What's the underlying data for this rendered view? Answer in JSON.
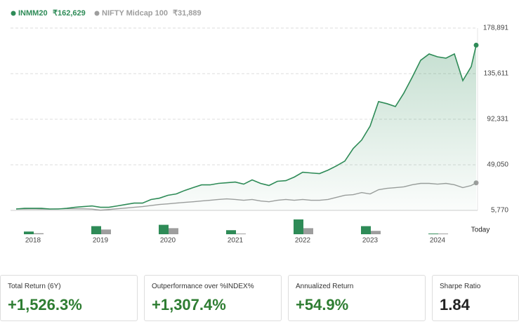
{
  "chart_data": [
    {
      "type": "area-line",
      "categories": [
        null,
        null,
        "2018",
        null,
        null,
        null,
        null,
        null,
        null,
        null,
        "2019",
        null,
        null,
        null,
        null,
        null,
        null,
        null,
        "2020",
        null,
        null,
        null,
        null,
        null,
        null,
        null,
        "2021",
        null,
        null,
        null,
        null,
        null,
        null,
        null,
        "2022",
        null,
        null,
        null,
        null,
        null,
        null,
        null,
        "2023",
        null,
        null,
        null,
        null,
        null,
        null,
        null,
        "2024",
        null,
        null,
        null,
        null,
        "Today"
      ],
      "series": [
        {
          "name": "INMM20",
          "color": "#2e8b57",
          "value_label": "₹162,629",
          "values": [
            7100,
            7700,
            7700,
            7700,
            7100,
            7100,
            7700,
            8700,
            9400,
            10000,
            8700,
            8700,
            10000,
            11400,
            12700,
            12700,
            16100,
            17400,
            20100,
            21400,
            24700,
            27400,
            30000,
            30000,
            31400,
            32000,
            32700,
            30700,
            34700,
            31400,
            29400,
            33400,
            34000,
            37400,
            42000,
            41300,
            40700,
            44000,
            48000,
            52600,
            64600,
            72600,
            85800,
            109100,
            107100,
            104400,
            117100,
            132300,
            148300,
            154300,
            151600,
            150300,
            154300,
            129000,
            142300,
            162629
          ]
        },
        {
          "name": "NIFTY Midcap 100",
          "color": "#9e9e9e",
          "value_label": "₹31,889",
          "values": [
            7100,
            7100,
            7200,
            7000,
            7000,
            7200,
            7300,
            7300,
            7200,
            7000,
            6000,
            6600,
            7300,
            8000,
            8700,
            9400,
            10400,
            11400,
            12000,
            12700,
            13400,
            14000,
            14700,
            15400,
            16100,
            16700,
            16100,
            15400,
            16100,
            14700,
            14000,
            15400,
            16100,
            15400,
            16100,
            15400,
            15400,
            16100,
            18100,
            20100,
            20700,
            22700,
            21400,
            25400,
            26700,
            27400,
            28100,
            30100,
            31400,
            31400,
            30700,
            31400,
            30100,
            27400,
            29400,
            31889
          ]
        }
      ],
      "ylim": [
        5770,
        178891
      ],
      "yticks": [
        {
          "value": 5770,
          "label": "5,770"
        },
        {
          "value": 49050,
          "label": "49,050"
        },
        {
          "value": 92331,
          "label": "92,331"
        },
        {
          "value": 135611,
          "label": "135,611"
        },
        {
          "value": 178891,
          "label": "178,891"
        }
      ],
      "grid": true
    },
    {
      "type": "bar",
      "series": [
        {
          "color": "#2e8b57",
          "values": [
            4,
            12,
            14,
            6,
            22,
            12,
            1
          ]
        },
        {
          "color": "#9e9e9e",
          "values": [
            1.5,
            7,
            9,
            1,
            9,
            5,
            1
          ]
        }
      ],
      "ylim": [
        0,
        25
      ]
    }
  ],
  "stats": [
    {
      "label": "Total Return (6Y)",
      "value": "+1,526.3%"
    },
    {
      "label": "Outperformance over %INDEX%",
      "value": "+1,307.4%"
    },
    {
      "label": "Annualized Return",
      "value": "+54.9%"
    },
    {
      "label": "Sharpe Ratio",
      "value": "1.84"
    }
  ]
}
